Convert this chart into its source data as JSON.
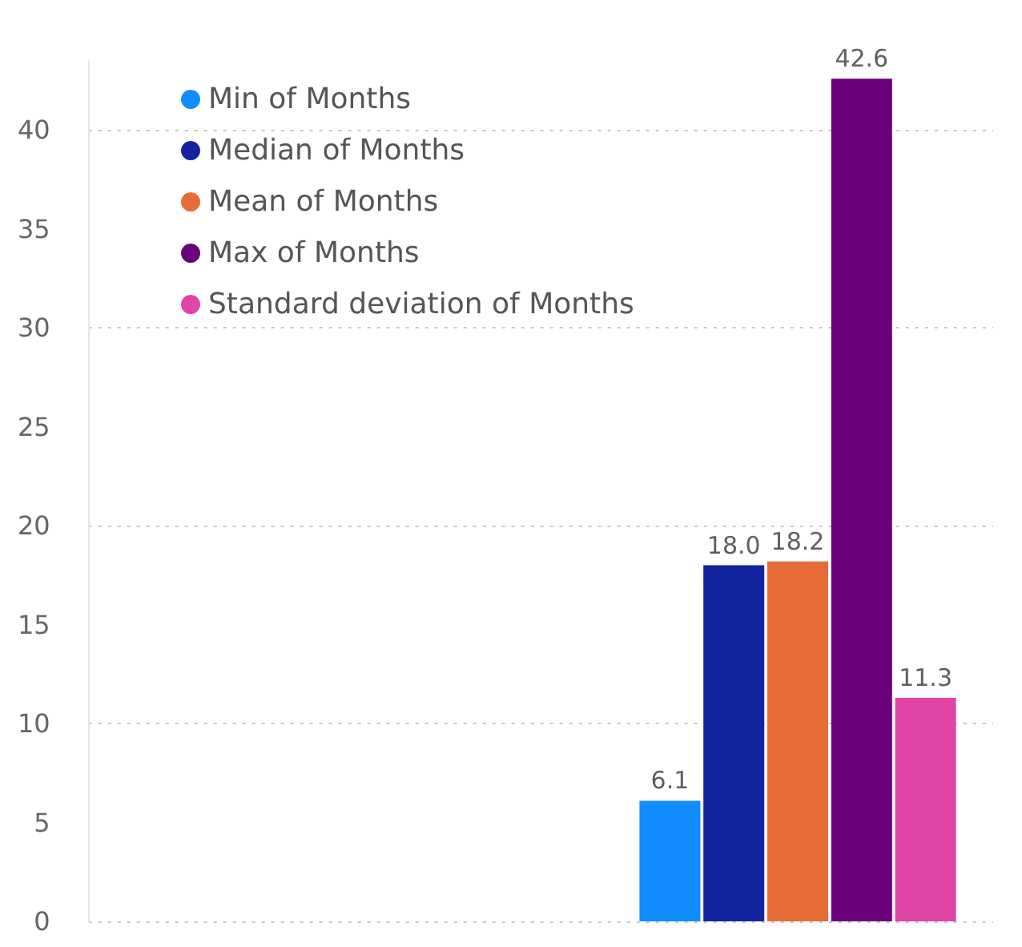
{
  "chart_data": {
    "type": "bar",
    "categories": [
      null
    ],
    "series": [
      {
        "name": "Min of Months",
        "color": "#118dff",
        "values": [
          6.1
        ],
        "value_labels": [
          "6.1"
        ]
      },
      {
        "name": "Median of Months",
        "color": "#12239e",
        "values": [
          18.0
        ],
        "value_labels": [
          "18.0"
        ]
      },
      {
        "name": "Mean of Months",
        "color": "#e66c37",
        "values": [
          18.2
        ],
        "value_labels": [
          "18.2"
        ]
      },
      {
        "name": "Max of Months",
        "color": "#6b007b",
        "values": [
          42.6
        ],
        "value_labels": [
          "42.6"
        ]
      },
      {
        "name": "Standard deviation of Months",
        "color": "#e044a7",
        "values": [
          11.3
        ],
        "value_labels": [
          "11.3"
        ]
      }
    ],
    "ylim": [
      0,
      43.5
    ],
    "yticks": [
      0,
      5,
      10,
      15,
      20,
      25,
      30,
      35,
      40
    ],
    "grid": "y",
    "legend": "top left"
  }
}
